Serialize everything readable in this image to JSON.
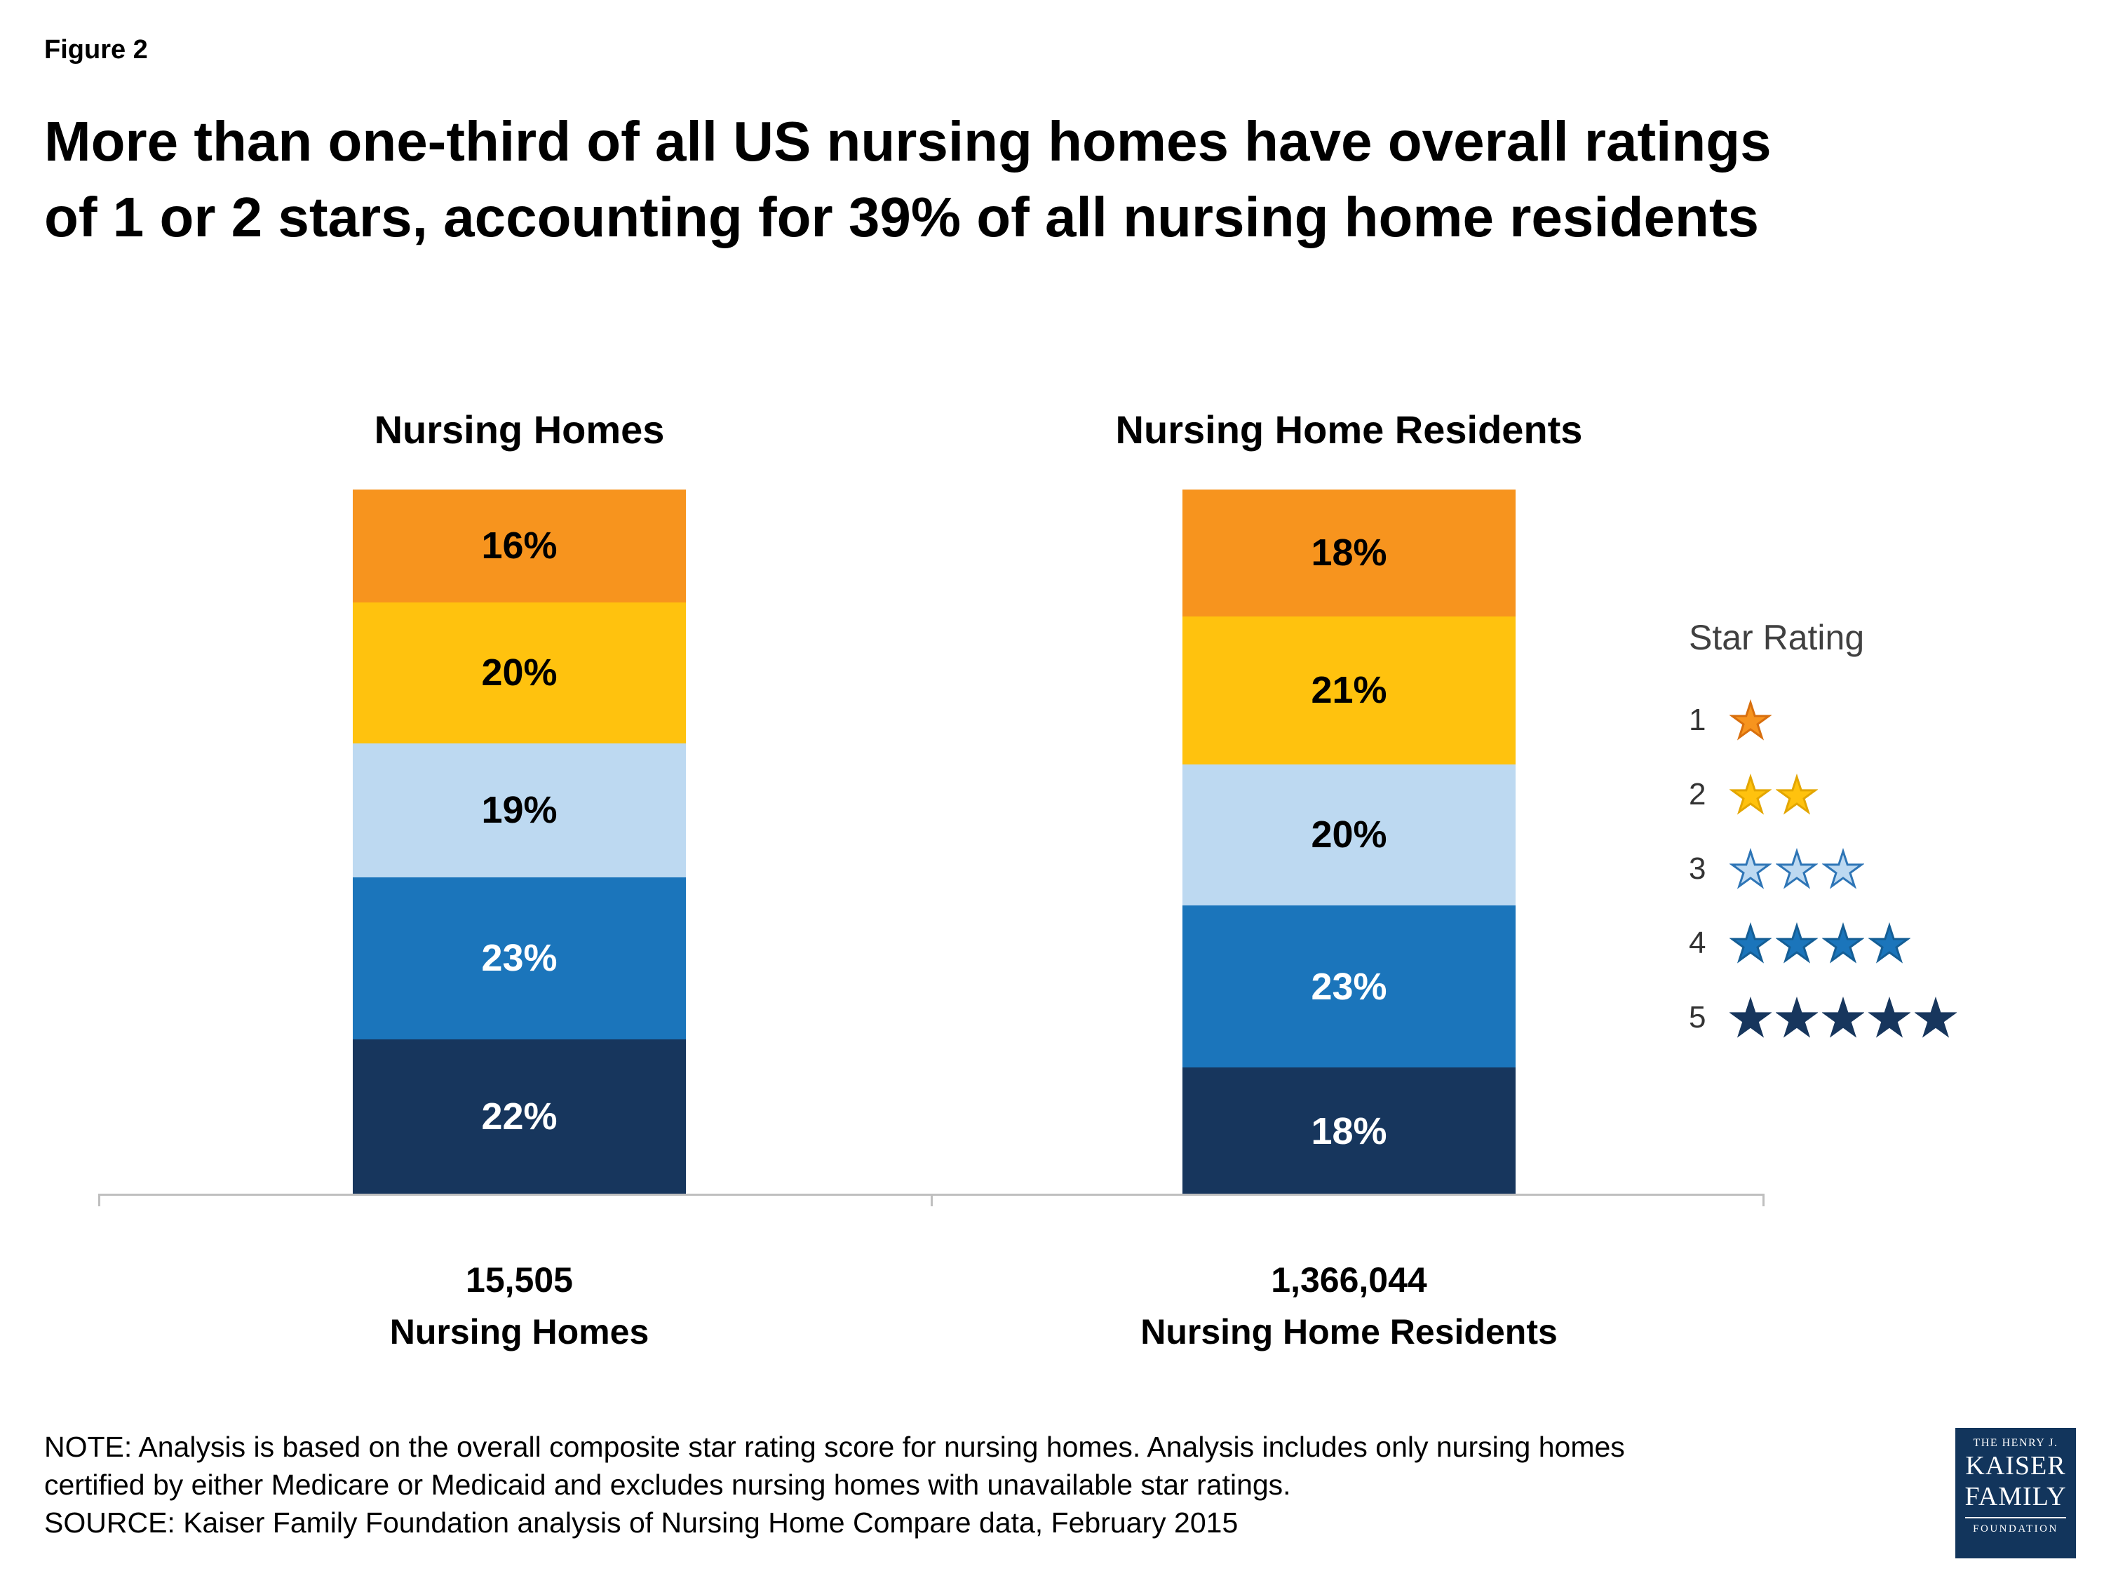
{
  "figure_label": "Figure 2",
  "title": "More than one-third of all US nursing homes have overall ratings of 1 or 2 stars, accounting for 39% of all nursing home residents",
  "title_lines": [
    "More than one-third of all US nursing homes have overall ratings",
    "of 1 or 2 stars, accounting for 39% of all nursing home residents"
  ],
  "chart_data": {
    "type": "bar",
    "subtype": "100%-stacked-column",
    "legend_position": "right",
    "stack_order_top_to_bottom": [
      "1 star",
      "2 stars",
      "3 stars",
      "4 stars",
      "5 stars"
    ],
    "categories": [
      "Nursing Homes",
      "Nursing Home Residents"
    ],
    "series": [
      {
        "name": "1 star",
        "color": "#F7941E",
        "values_pct": [
          16,
          18
        ]
      },
      {
        "name": "2 stars",
        "color": "#FFC20E",
        "values_pct": [
          20,
          21
        ]
      },
      {
        "name": "3 stars",
        "color": "#BDD9F1",
        "values_pct": [
          19,
          20
        ]
      },
      {
        "name": "4 stars",
        "color": "#1B75BB",
        "values_pct": [
          23,
          23
        ]
      },
      {
        "name": "5 stars",
        "color": "#17365D",
        "values_pct": [
          22,
          18
        ]
      }
    ],
    "columns": [
      {
        "heading": "Nursing Homes",
        "total": "15,505",
        "total_label": "Nursing Homes",
        "segments": [
          {
            "star_rating": 1,
            "value": 16,
            "label": "16%",
            "color": "#F7941E",
            "text_color": "#000000"
          },
          {
            "star_rating": 2,
            "value": 20,
            "label": "20%",
            "color": "#FFC20E",
            "text_color": "#000000"
          },
          {
            "star_rating": 3,
            "value": 19,
            "label": "19%",
            "color": "#BDD9F1",
            "text_color": "#000000"
          },
          {
            "star_rating": 4,
            "value": 23,
            "label": "23%",
            "color": "#1B75BB",
            "text_color": "#FFFFFF"
          },
          {
            "star_rating": 5,
            "value": 22,
            "label": "22%",
            "color": "#17365D",
            "text_color": "#FFFFFF"
          }
        ]
      },
      {
        "heading": "Nursing Home Residents",
        "total": "1,366,044",
        "total_label": "Nursing Home Residents",
        "segments": [
          {
            "star_rating": 1,
            "value": 18,
            "label": "18%",
            "color": "#F7941E",
            "text_color": "#000000"
          },
          {
            "star_rating": 2,
            "value": 21,
            "label": "21%",
            "color": "#FFC20E",
            "text_color": "#000000"
          },
          {
            "star_rating": 3,
            "value": 20,
            "label": "20%",
            "color": "#BDD9F1",
            "text_color": "#000000"
          },
          {
            "star_rating": 4,
            "value": 23,
            "label": "23%",
            "color": "#1B75BB",
            "text_color": "#FFFFFF"
          },
          {
            "star_rating": 5,
            "value": 18,
            "label": "18%",
            "color": "#17365D",
            "text_color": "#FFFFFF"
          }
        ]
      }
    ],
    "legend": {
      "title": "Star Rating",
      "rows": [
        {
          "rating": 1,
          "stars": 1,
          "fill": "#F7941E",
          "stroke": "#D86F0E"
        },
        {
          "rating": 2,
          "stars": 2,
          "fill": "#FFC20E",
          "stroke": "#E3A600"
        },
        {
          "rating": 3,
          "stars": 3,
          "fill": "#BDD9F1",
          "stroke": "#2E75B6"
        },
        {
          "rating": 4,
          "stars": 4,
          "fill": "#1B75BB",
          "stroke": "#155E95"
        },
        {
          "rating": 5,
          "stars": 5,
          "fill": "#17365D",
          "stroke": "#17365D"
        }
      ]
    },
    "axis_color": "#BFBFBF"
  },
  "notes": {
    "note_line1": "NOTE: Analysis is based on the overall composite star rating score for nursing homes. Analysis includes only nursing homes",
    "note_line2": "certified by either Medicare or Medicaid and excludes nursing homes with unavailable star ratings.",
    "source": "SOURCE: Kaiser Family Foundation analysis of Nursing Home Compare data, February 2015"
  },
  "logo": {
    "line1": "THE HENRY J.",
    "line2": "KAISER",
    "line3": "FAMILY",
    "line4": "FOUNDATION",
    "background": "#12355C"
  }
}
